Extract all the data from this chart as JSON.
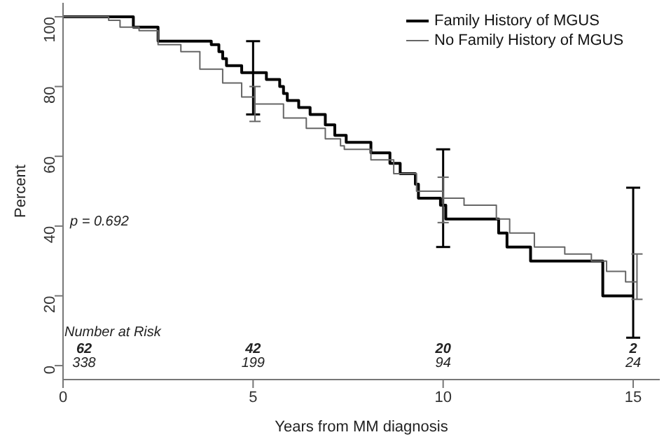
{
  "chart_data": {
    "type": "step",
    "xlabel": "Years from MM diagnosis",
    "ylabel": "Percent",
    "xlim": [
      0,
      15.7
    ],
    "ylim": [
      -4,
      104
    ],
    "xticks": [
      0,
      5,
      10,
      15
    ],
    "yticks": [
      0,
      20,
      40,
      60,
      80,
      100
    ],
    "grid": false,
    "legend": "top right",
    "marker": "none",
    "line_style": "solid",
    "series": [
      {
        "name": "Family History of MGUS",
        "color": "#000000",
        "x": [
          0,
          1.85,
          2.5,
          3.9,
          4.1,
          4.2,
          4.3,
          4.7,
          5,
          5.35,
          5.7,
          5.8,
          5.9,
          6.2,
          6.5,
          6.9,
          7.15,
          7.45,
          8.1,
          8.6,
          8.87,
          9.27,
          9.35,
          9.93,
          10,
          10.07,
          11.46,
          11.68,
          12.3,
          14.2,
          15
        ],
        "values": [
          100,
          97,
          93,
          92,
          90,
          88,
          86,
          84,
          84,
          82,
          80,
          78,
          76,
          74,
          72,
          69,
          66,
          64,
          61,
          58,
          55,
          52,
          48,
          46,
          46,
          42,
          38,
          34,
          30,
          20,
          20
        ],
        "errors": [
          null,
          null,
          null,
          null,
          null,
          null,
          null,
          null,
          [
            72,
            93
          ],
          null,
          null,
          null,
          null,
          null,
          null,
          null,
          null,
          null,
          null,
          null,
          null,
          null,
          null,
          null,
          [
            34,
            62
          ],
          null,
          null,
          null,
          null,
          null,
          [
            8,
            51
          ]
        ]
      },
      {
        "name": "No Family History of MGUS",
        "color": "#666666",
        "x": [
          0,
          0.6,
          1.2,
          1.5,
          2.0,
          2.5,
          3.1,
          3.6,
          4.2,
          4.7,
          5.05,
          5.8,
          6.4,
          6.9,
          7.3,
          7.4,
          8.1,
          8.7,
          9.3,
          10,
          10.55,
          11.4,
          11.75,
          12.4,
          13.2,
          13.9,
          14.3,
          14.8,
          15.1
        ],
        "values": [
          100,
          100,
          99,
          97,
          96,
          92,
          90,
          85,
          81,
          77,
          75,
          71,
          68,
          65,
          63,
          62,
          59,
          55,
          50,
          48,
          46,
          42,
          38,
          34,
          32,
          30,
          27,
          24,
          24
        ],
        "errors": [
          null,
          null,
          null,
          null,
          null,
          null,
          null,
          null,
          null,
          null,
          [
            70,
            80
          ],
          null,
          null,
          null,
          null,
          null,
          null,
          null,
          null,
          [
            41,
            54
          ],
          null,
          null,
          null,
          null,
          null,
          null,
          null,
          null,
          [
            19,
            32
          ]
        ]
      }
    ],
    "annotations": [
      "p = 0.692",
      "Number at Risk",
      "62",
      "338",
      "42",
      "199",
      "20",
      "94",
      "2",
      "24"
    ]
  }
}
